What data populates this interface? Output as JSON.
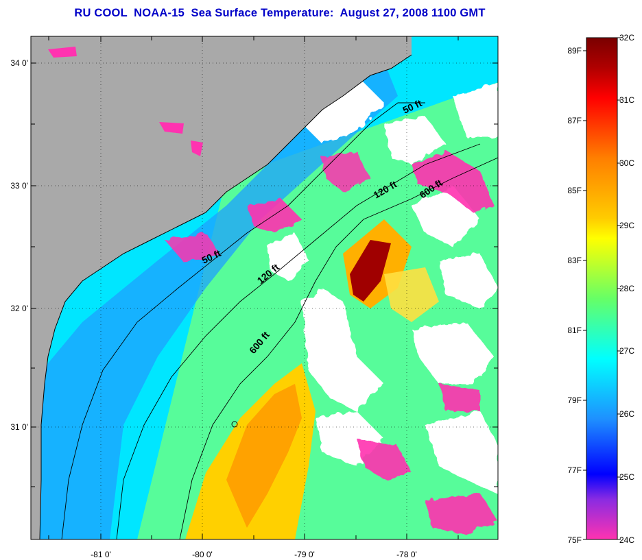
{
  "title": "RU COOL  NOAA-15  Sea Surface Temperature:  August 27, 2008 1100 GMT",
  "map": {
    "lon_labels": [
      "-81 0'",
      "-80 0'",
      "-79 0'",
      "-78 0'"
    ],
    "lat_labels": [
      "34 0'",
      "33 0'",
      "32 0'",
      "31 0'"
    ],
    "isobath_labels": [
      {
        "text": "50 ft"
      },
      {
        "text": "120 ft"
      },
      {
        "text": "600 ft"
      },
      {
        "text": "50 ft"
      },
      {
        "text": "120 ft"
      },
      {
        "text": "600 ft"
      }
    ]
  },
  "colorbar": {
    "celsius_labels": [
      "32C",
      "31C",
      "30C",
      "29C",
      "28C",
      "27C",
      "26C",
      "25C",
      "24C"
    ],
    "fahrenheit_labels": [
      "89F",
      "87F",
      "85F",
      "83F",
      "81F",
      "79F",
      "77F",
      "75F"
    ],
    "colors": {
      "c24": "#ff33b0",
      "c25": "#0000ff",
      "c26": "#1e90ff",
      "c27": "#00ffff",
      "c28": "#66ff66",
      "c29": "#ffff00",
      "c30": "#ff8c00",
      "c31": "#ff0000",
      "c32": "#7a0000"
    }
  },
  "colors": {
    "land": "#a9a9a9",
    "cloud": "#ffffff",
    "title": "#0000c8"
  }
}
